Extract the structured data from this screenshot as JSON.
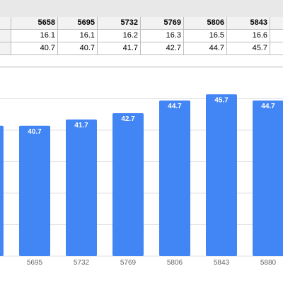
{
  "sheet": {
    "header_row": [
      "5658",
      "5695",
      "5732",
      "5769",
      "5806",
      "5843"
    ],
    "rows": [
      [
        "16.1",
        "16.1",
        "16.2",
        "16.3",
        "16.5",
        "16.6"
      ],
      [
        "40.7",
        "40.7",
        "41.7",
        "42.7",
        "44.7",
        "45.7"
      ]
    ]
  },
  "chart_data": {
    "type": "bar",
    "categories": [
      "5658",
      "5695",
      "5732",
      "5769",
      "5806",
      "5843",
      "5880"
    ],
    "values": [
      40.7,
      40.7,
      41.7,
      42.7,
      44.7,
      45.7,
      44.7
    ],
    "data_labels": [
      "",
      "40.7",
      "41.7",
      "42.7",
      "44.7",
      "45.7",
      "44.7"
    ],
    "tick_labels": [
      "",
      "5695",
      "5732",
      "5769",
      "5806",
      "5843",
      "5880"
    ],
    "ylim": [
      20,
      50
    ],
    "grid": true,
    "colors": {
      "bar": "#4285f4",
      "label": "#ffffff",
      "grid": "#e0e0e0",
      "tick": "#666666"
    }
  }
}
